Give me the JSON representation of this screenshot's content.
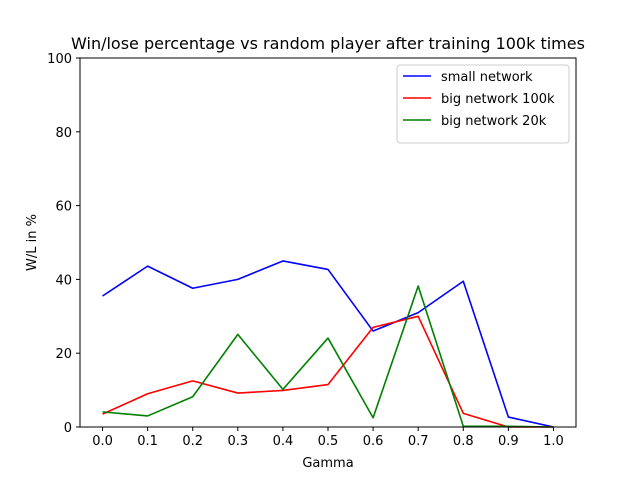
{
  "chart_data": {
    "type": "line",
    "title": "Win/lose percentage vs random player after training 100k times",
    "xlabel": "Gamma",
    "ylabel": "W/L in %",
    "xlim": [
      -0.05,
      1.05
    ],
    "ylim": [
      0,
      100
    ],
    "x_ticks": [
      "0.0",
      "0.1",
      "0.2",
      "0.3",
      "0.4",
      "0.5",
      "0.6",
      "0.7",
      "0.8",
      "0.9",
      "1.0"
    ],
    "y_ticks": [
      "0",
      "20",
      "40",
      "60",
      "80",
      "100"
    ],
    "x": [
      0.0,
      0.1,
      0.2,
      0.3,
      0.4,
      0.5,
      0.6,
      0.7,
      0.8,
      0.9,
      1.0
    ],
    "grid": false,
    "legend_position": "top-right",
    "series": [
      {
        "name": "small network",
        "color": "#0000ff",
        "values": [
          35.5,
          43.6,
          37.6,
          40.0,
          45.0,
          42.7,
          26.0,
          31.0,
          39.5,
          2.7,
          0.0
        ]
      },
      {
        "name": "big network 100k",
        "color": "#ff0000",
        "values": [
          3.5,
          9.0,
          12.5,
          9.2,
          9.9,
          11.5,
          27.0,
          30.0,
          3.7,
          0.0,
          0.0
        ]
      },
      {
        "name": "big network 20k",
        "color": "#008000",
        "values": [
          4.1,
          3.0,
          8.2,
          25.1,
          10.2,
          24.1,
          2.5,
          38.2,
          0.2,
          0.2,
          0.0
        ]
      }
    ]
  }
}
